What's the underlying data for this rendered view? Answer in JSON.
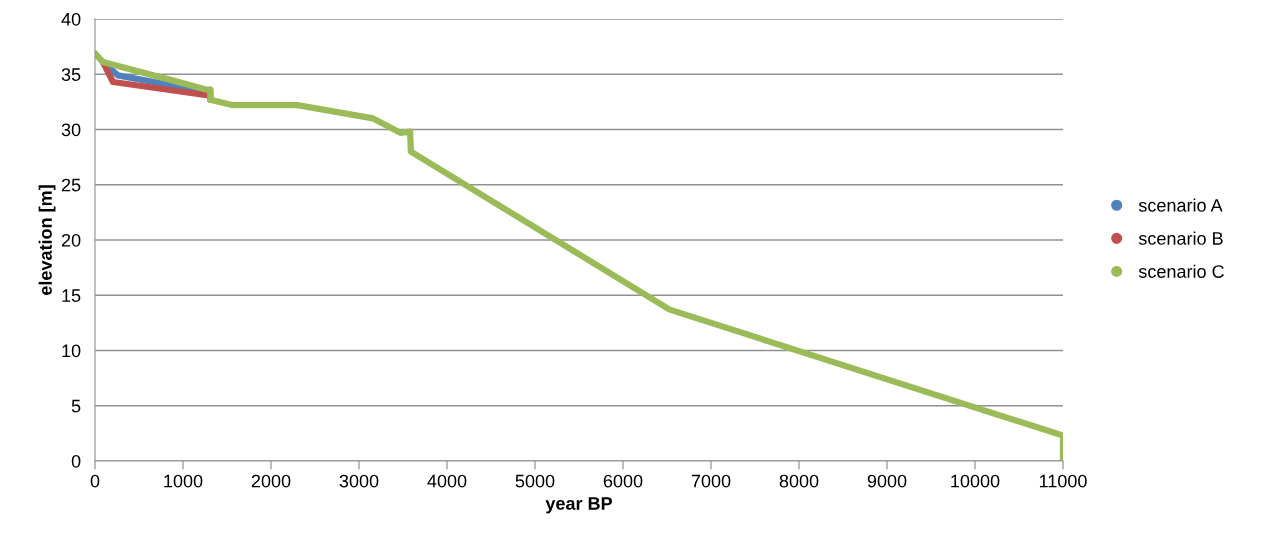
{
  "chart_data": {
    "type": "line",
    "xlabel": "year BP",
    "ylabel": "elevation [m]",
    "xlim": [
      0,
      11000
    ],
    "xticks": [
      0,
      1000,
      2000,
      3000,
      4000,
      5000,
      6000,
      7000,
      8000,
      9000,
      10000,
      11000
    ],
    "ylim": [
      0,
      40
    ],
    "yticks": [
      0,
      5,
      10,
      15,
      20,
      25,
      30,
      35,
      40
    ],
    "grid": "y",
    "legend": "right",
    "series": [
      {
        "name": "scenario A",
        "color": "#4f81bd",
        "x": [
          90,
          260,
          1270
        ],
        "values": [
          36.1,
          34.9,
          33.4
        ]
      },
      {
        "name": "scenario B",
        "color": "#c0504d",
        "x": [
          90,
          205,
          1270,
          1310,
          1310
        ],
        "values": [
          36.1,
          34.3,
          33.1,
          33.6,
          32.7
        ]
      },
      {
        "name": "scenario C",
        "color": "#9bbb59",
        "x": [
          0,
          90,
          900,
          1270,
          1310,
          1310,
          1570,
          2300,
          3160,
          3470,
          3580,
          3590,
          6530,
          11000,
          11000
        ],
        "values": [
          36.9,
          36.1,
          34.4,
          33.6,
          33.6,
          32.7,
          32.2,
          32.2,
          31.0,
          29.7,
          29.8,
          28.0,
          13.7,
          2.3,
          0
        ]
      }
    ]
  }
}
